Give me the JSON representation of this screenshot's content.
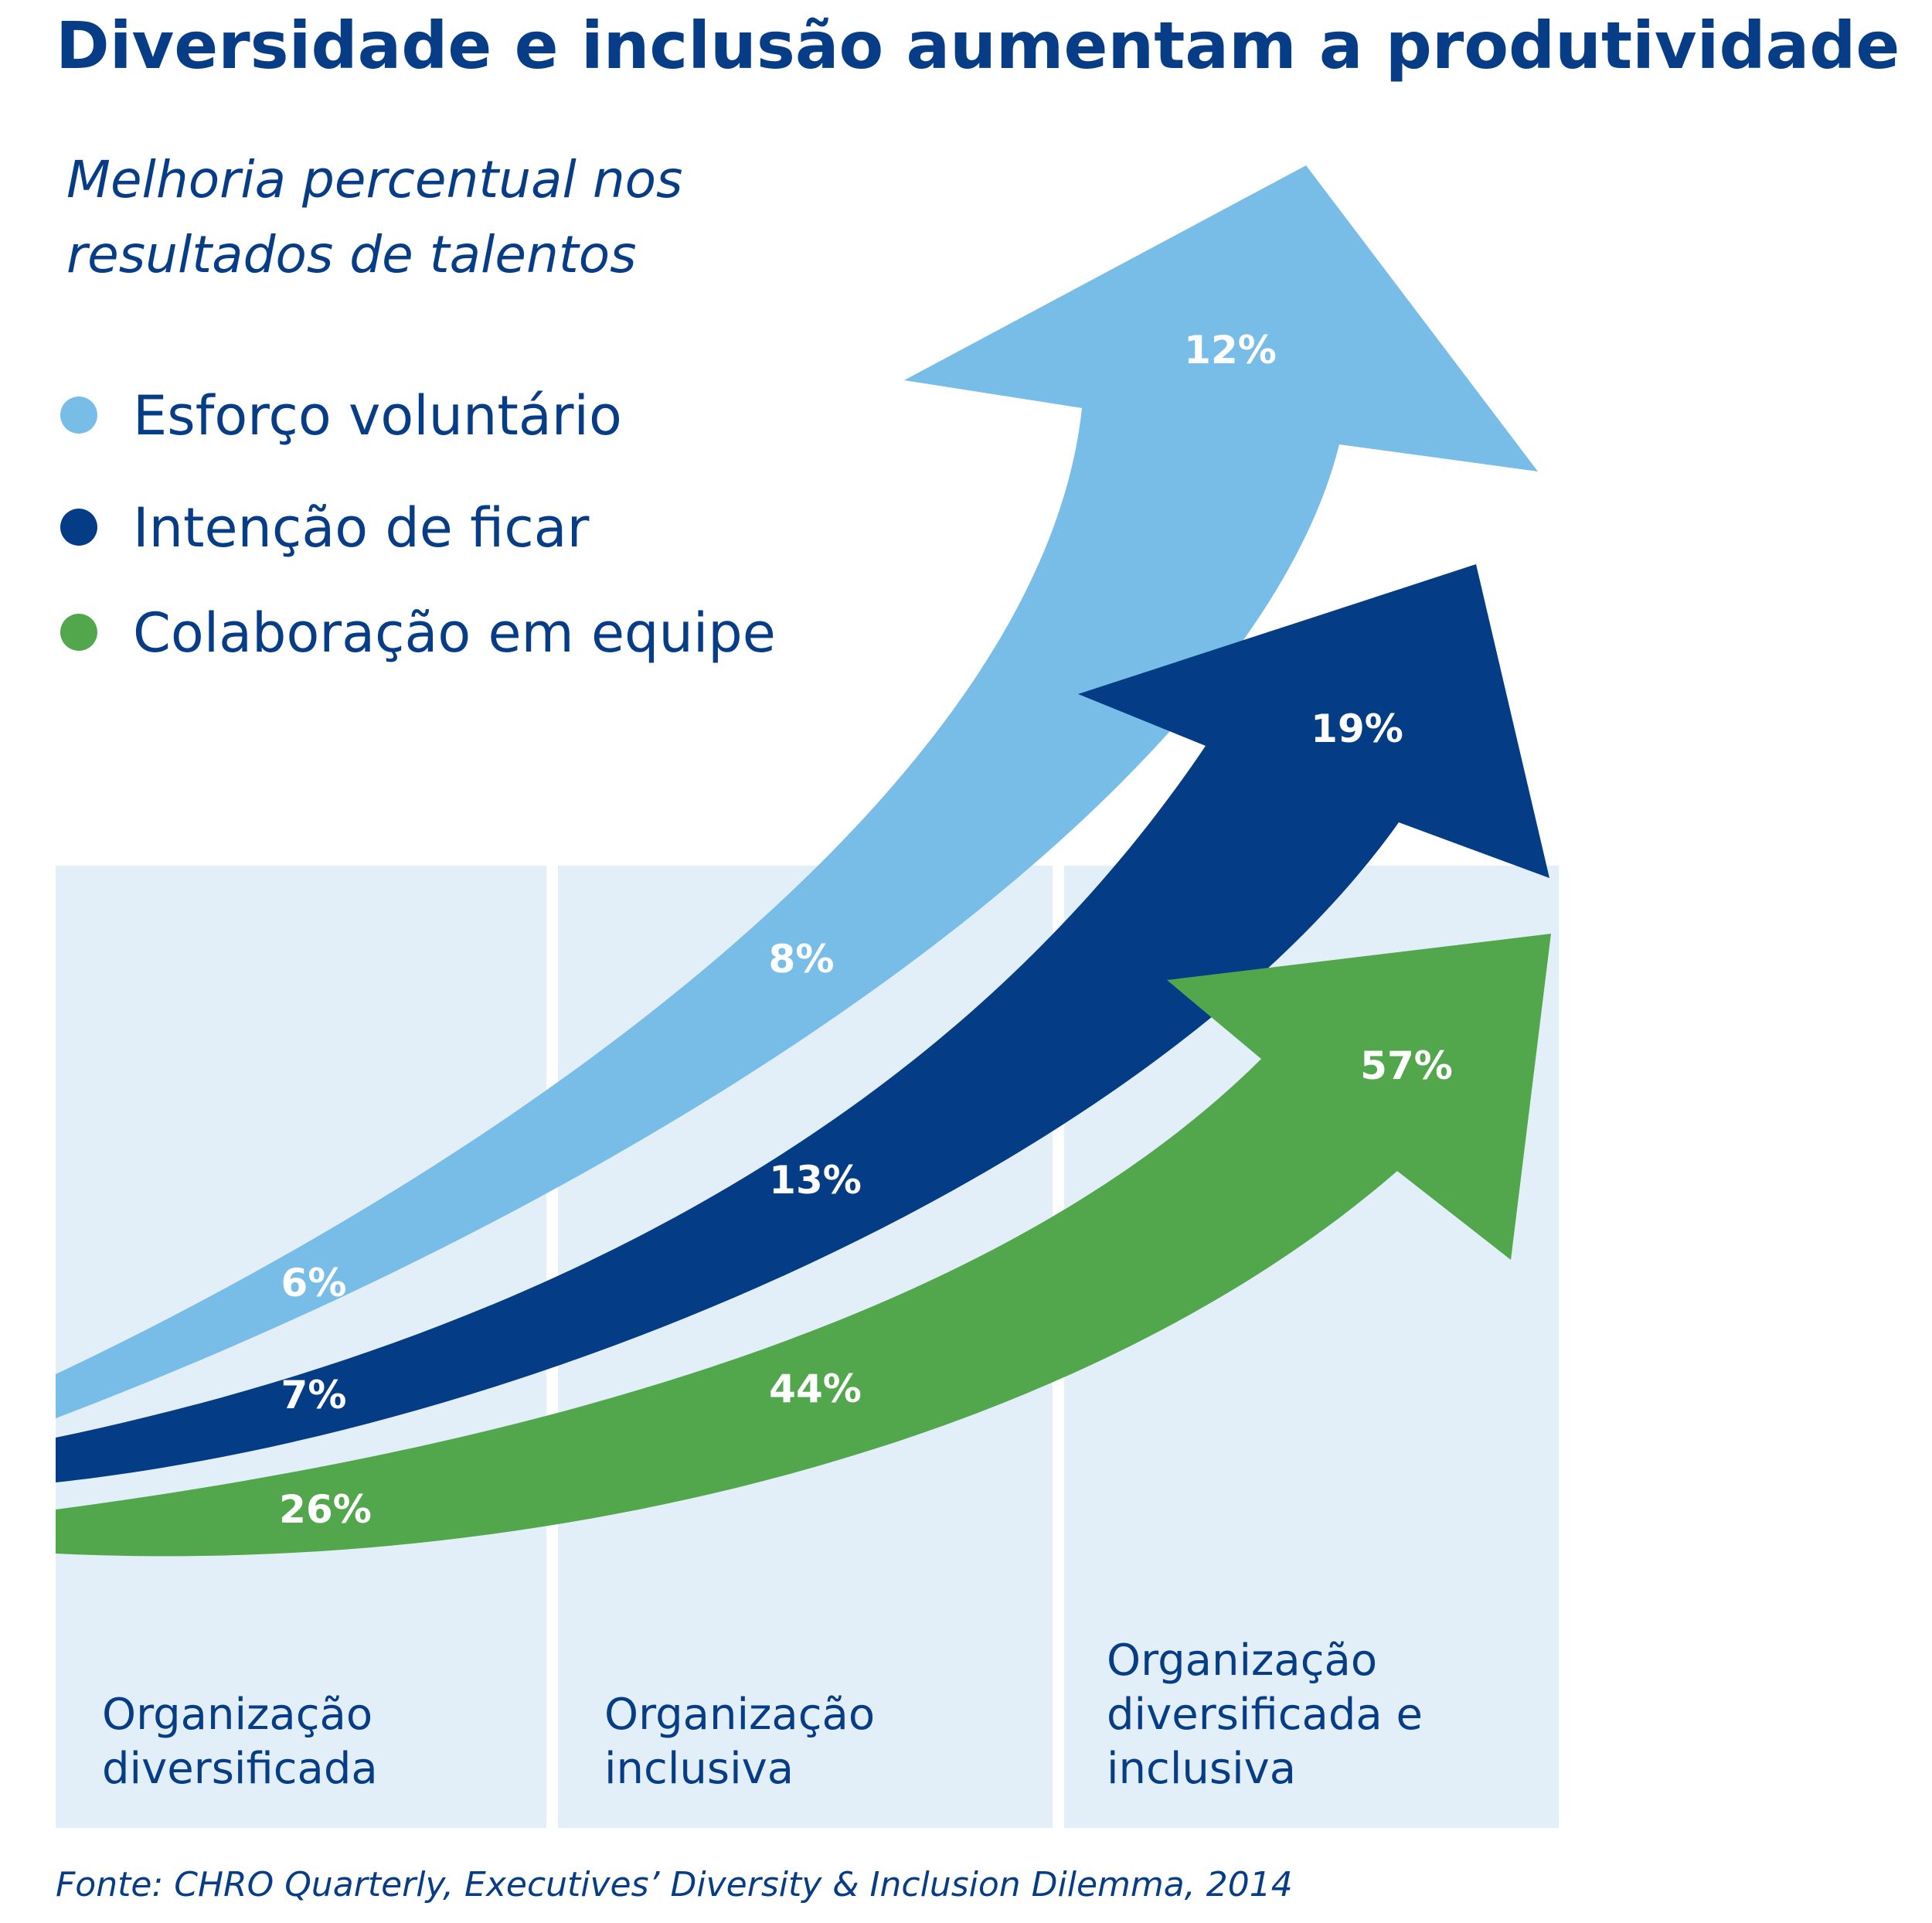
{
  "title": "Diversidade e inclusão aumentam a produtividade",
  "subtitle_line1": "Melhoria percentual nos",
  "subtitle_line2": "resultados de talentos",
  "source": "Fonte: CHRO Quarterly, Executives’ Diversity & Inclusion Dilemma, 2014",
  "colors": {
    "title": "#063d86",
    "background_column": "#e2eff9",
    "esforco": "#78bce8",
    "intencao": "#043c86",
    "colaboracao": "#52a74c"
  },
  "chart_data": {
    "type": "line",
    "categories": [
      "Organização diversificada",
      "Organização inclusiva",
      "Organização diversificada e inclusiva"
    ],
    "category_lines": [
      [
        "Organização",
        "diversificada"
      ],
      [
        "Organização",
        "inclusiva"
      ],
      [
        "Organização",
        "diversificada e",
        "inclusiva"
      ]
    ],
    "series": [
      {
        "name": "Esforço voluntário",
        "values": [
          6,
          8,
          12
        ],
        "labels": [
          "6%",
          "8%",
          "12%"
        ],
        "color": "#78bce8"
      },
      {
        "name": "Intenção de ficar",
        "values": [
          7,
          13,
          19
        ],
        "labels": [
          "7%",
          "13%",
          "19%"
        ],
        "color": "#043c86"
      },
      {
        "name": "Colaboração em equipe",
        "values": [
          26,
          44,
          57
        ],
        "labels": [
          "26%",
          "44%",
          "57%"
        ],
        "color": "#52a74c"
      }
    ],
    "legend_position": "top-left",
    "grid": false
  }
}
